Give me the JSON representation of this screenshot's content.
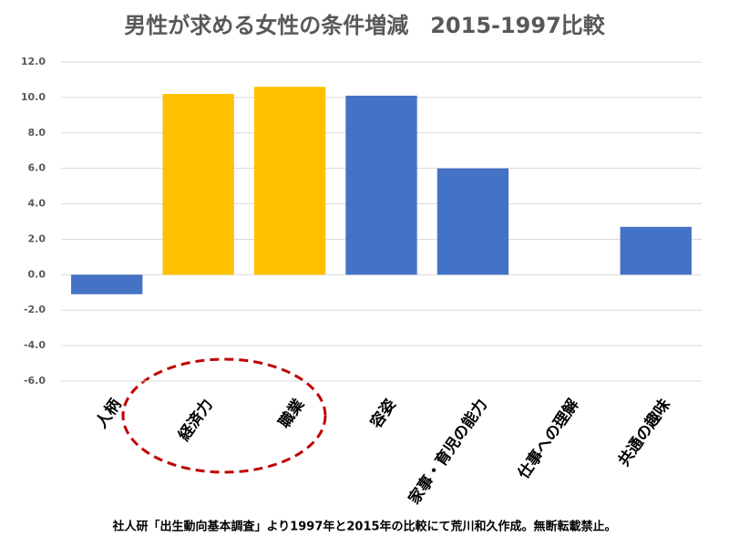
{
  "chart_data": {
    "type": "bar",
    "title": "男性が求める女性の条件増減　2015-1997比較",
    "categories": [
      "人柄",
      "経済力",
      "職業",
      "容姿",
      "家事・育児の能力",
      "仕事への理解",
      "共通の趣味"
    ],
    "values": [
      -1.1,
      10.2,
      10.6,
      10.1,
      6.0,
      0,
      2.7
    ],
    "colors": [
      "#4472c4",
      "#ffc000",
      "#ffc000",
      "#4472c4",
      "#4472c4",
      "#4472c4",
      "#4472c4"
    ],
    "ylim": [
      -6,
      12
    ],
    "yticks": [
      {
        "value": -6,
        "label": "-6.0"
      },
      {
        "value": -4,
        "label": "-4.0"
      },
      {
        "value": -2,
        "label": "-2.0"
      },
      {
        "value": 0,
        "label": "0.0"
      },
      {
        "value": 2,
        "label": "2.0"
      },
      {
        "value": 4,
        "label": "4.0"
      },
      {
        "value": 6,
        "label": "6.0"
      },
      {
        "value": 8,
        "label": "8.0"
      },
      {
        "value": 10,
        "label": "10.0"
      },
      {
        "value": 12,
        "label": "12.0"
      }
    ],
    "grid": true,
    "footnote": "社人研「出生動向基本調査」より1997年と2015年の比較にて荒川和久作成。無断転載禁止。"
  }
}
